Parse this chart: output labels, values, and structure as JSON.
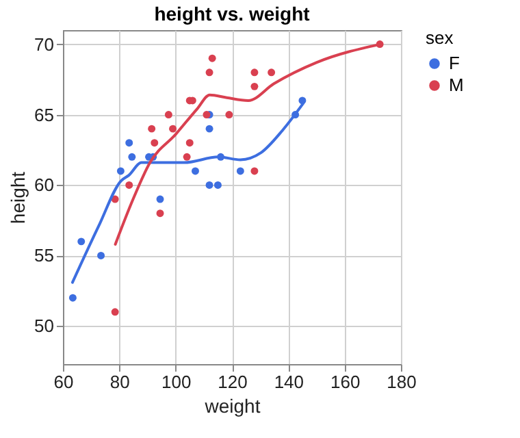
{
  "chart_data": {
    "type": "scatter",
    "title": "height vs. weight",
    "xlabel": "weight",
    "ylabel": "height",
    "legend_title": "sex",
    "legend": "right",
    "grid": true,
    "marker": "circle",
    "xlim": [
      60,
      180
    ],
    "xticks": [
      60,
      80,
      100,
      120,
      140,
      160,
      180
    ],
    "ylim": [
      47.3,
      71
    ],
    "yticks": [
      50,
      55,
      60,
      65,
      70
    ],
    "series": [
      {
        "name": "F",
        "color": "#3d6ee0",
        "x": [
          63.5,
          66.5,
          73.5,
          80.5,
          83.5,
          84.5,
          90.5,
          92,
          94.5,
          107,
          112,
          112,
          112,
          115,
          116,
          123,
          142.5,
          145
        ],
        "values": [
          52,
          56,
          55,
          61,
          63,
          62,
          62,
          62,
          59,
          61,
          65,
          64,
          60,
          60,
          62,
          61,
          65,
          66
        ]
      },
      {
        "name": "M",
        "color": "#d94050",
        "x": [
          78.5,
          78.5,
          83.5,
          91.5,
          92.5,
          94.5,
          97.5,
          99,
          104,
          105,
          105,
          106,
          111,
          112,
          113,
          119,
          128,
          128,
          128,
          134,
          172.5
        ],
        "values": [
          51,
          59,
          60,
          64,
          63,
          58,
          65,
          64,
          62,
          63,
          66,
          66,
          65,
          68,
          69,
          65,
          68,
          67,
          61,
          68,
          70
        ]
      },
      {
        "type": "line",
        "marker": "none",
        "color": "#3d6ee0",
        "x": [
          63.4,
          72.7,
          80.6,
          83.4,
          87.9,
          94,
          103,
          115.2,
          123,
          130.3,
          138,
          145.3
        ],
        "values": [
          53.1,
          57.1,
          60.3,
          60.7,
          61.6,
          61.6,
          61.6,
          62,
          61.8,
          62.3,
          63.9,
          65.8
        ]
      },
      {
        "type": "line",
        "marker": "none",
        "color": "#d94050",
        "x": [
          78.6,
          84.9,
          90.9,
          100,
          107.6,
          112.1,
          118.2,
          125.8,
          134.9,
          150,
          172.7
        ],
        "values": [
          55.8,
          59,
          61.6,
          63.6,
          65.4,
          66.4,
          66.2,
          66,
          67.2,
          68.7,
          70
        ]
      }
    ]
  }
}
